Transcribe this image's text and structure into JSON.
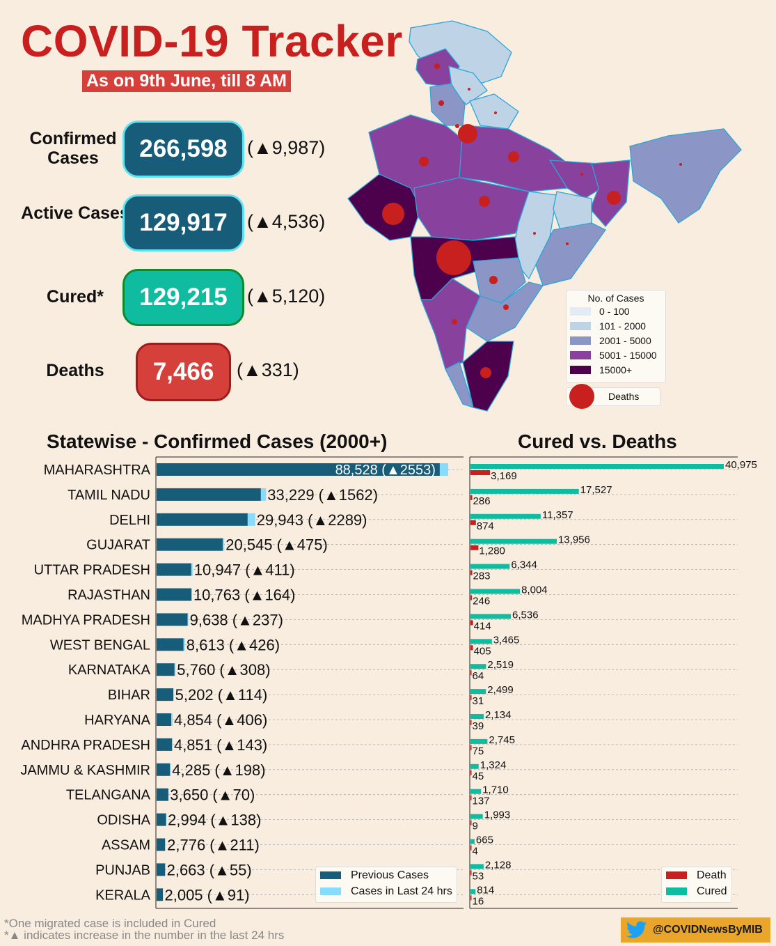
{
  "header": {
    "title": "COVID-19 Tracker",
    "subtitle": "As on 9th June, till 8 AM"
  },
  "stats": {
    "confirmed": {
      "label": "Confirmed Cases",
      "value": "266,598",
      "delta": "(▲9,987)",
      "color": "#175d79"
    },
    "active": {
      "label": "Active Cases",
      "value": "129,917",
      "delta": "(▲4,536)",
      "color": "#175d79"
    },
    "cured": {
      "label": "Cured*",
      "value": "129,215",
      "delta": "(▲5,120)",
      "color": "#10bca0"
    },
    "deaths": {
      "label": "Deaths",
      "value": "7,466",
      "delta": "(▲331)",
      "color": "#d6403b"
    }
  },
  "map_legend": {
    "title": "No. of Cases",
    "items": [
      {
        "label": "0 - 100",
        "color": "#e3ecf4"
      },
      {
        "label": "101 - 2000",
        "color": "#bed3e6"
      },
      {
        "label": "2001 - 5000",
        "color": "#8c96c6"
      },
      {
        "label": "5001 - 15000",
        "color": "#88419d"
      },
      {
        "label": "15000+",
        "color": "#4d004b"
      }
    ],
    "deaths_label": "Deaths"
  },
  "chart_data": [
    {
      "type": "bar",
      "orientation": "horizontal",
      "stacked": true,
      "title": "Statewise - Confirmed Cases (2000+)",
      "categories": [
        "MAHARASHTRA",
        "TAMIL NADU",
        "DELHI",
        "GUJARAT",
        "UTTAR PRADESH",
        "RAJASTHAN",
        "MADHYA PRADESH",
        "WEST BENGAL",
        "KARNATAKA",
        "BIHAR",
        "HARYANA",
        "ANDHRA PRADESH",
        "JAMMU & KASHMIR",
        "TELANGANA",
        "ODISHA",
        "ASSAM",
        "PUNJAB",
        "KERALA"
      ],
      "series": [
        {
          "name": "Previous Cases",
          "color": "#175d79",
          "values": [
            85975,
            31667,
            27654,
            20070,
            10536,
            10599,
            9401,
            8187,
            5452,
            5088,
            4448,
            4708,
            4087,
            3580,
            2856,
            2565,
            2608,
            1914
          ]
        },
        {
          "name": "Cases in Last 24 hrs",
          "color": "#87dcfb",
          "values": [
            2553,
            1562,
            2289,
            475,
            411,
            164,
            237,
            426,
            308,
            114,
            406,
            143,
            198,
            70,
            138,
            211,
            55,
            91
          ]
        }
      ],
      "labels": [
        "88,528 (▲2553)",
        "33,229 (▲1562)",
        "29,943 (▲2289)",
        "20,545 (▲475)",
        "10,947 (▲411)",
        "10,763 (▲164)",
        "9,638 (▲237)",
        "8,613 (▲426)",
        "5,760 (▲308)",
        "5,202 (▲114)",
        "4,854 (▲406)",
        "4,851 (▲143)",
        "4,285 (▲198)",
        "3,650 (▲70)",
        "2,994 (▲138)",
        "2,776 (▲211)",
        "2,663 (▲55)",
        "2,005 (▲91)"
      ],
      "legend": "bottom-right",
      "grid": true
    },
    {
      "type": "bar",
      "orientation": "horizontal",
      "title": "Cured vs. Deaths",
      "categories": [
        "MAHARASHTRA",
        "TAMIL NADU",
        "DELHI",
        "GUJARAT",
        "UTTAR PRADESH",
        "RAJASTHAN",
        "MADHYA PRADESH",
        "WEST BENGAL",
        "KARNATAKA",
        "BIHAR",
        "HARYANA",
        "ANDHRA PRADESH",
        "JAMMU & KASHMIR",
        "TELANGANA",
        "ODISHA",
        "ASSAM",
        "PUNJAB",
        "KERALA"
      ],
      "series": [
        {
          "name": "Cured",
          "color": "#10bca0",
          "values": [
            40975,
            17527,
            11357,
            13956,
            6344,
            8004,
            6536,
            3465,
            2519,
            2499,
            2134,
            2745,
            1324,
            1710,
            1993,
            665,
            2128,
            814
          ]
        },
        {
          "name": "Death",
          "color": "#c8201e",
          "values": [
            3169,
            286,
            874,
            1280,
            283,
            246,
            414,
            405,
            64,
            31,
            39,
            75,
            45,
            137,
            9,
            4,
            53,
            16
          ]
        }
      ],
      "cured_labels": [
        "40,975",
        "17,527",
        "11,357",
        "13,956",
        "6,344",
        "8,004",
        "6,536",
        "3,465",
        "2,519",
        "2,499",
        "2,134",
        "2,745",
        "1,324",
        "1,710",
        "1,993",
        "665",
        "2,128",
        "814"
      ],
      "death_labels": [
        "3,169",
        "286",
        "874",
        "1,280",
        "283",
        "246",
        "414",
        "405",
        "64",
        "31",
        "39",
        "75",
        "45",
        "137",
        "9",
        "4",
        "53",
        "16"
      ],
      "legend": "bottom-right",
      "grid": true
    }
  ],
  "footer": {
    "note1": "*One migrated case is included in Cured",
    "note2": "*▲ indicates increase in the number in the last 24 hrs",
    "handle": "@COVIDNewsByMIB",
    "twitter_color": "#1da1f2"
  }
}
